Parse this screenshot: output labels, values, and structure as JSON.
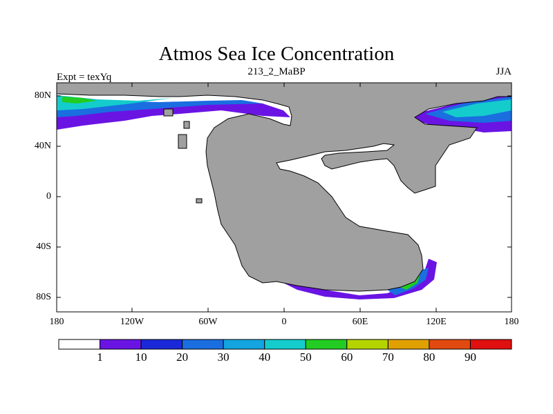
{
  "title": "Atmos Sea Ice Concentration",
  "subtitle": "213_2_MaBP",
  "left_label": "Expt = texYq",
  "right_label": "JJA",
  "map": {
    "lat_ticks": [
      "80N",
      "40N",
      "0",
      "40S",
      "80S"
    ],
    "lon_ticks": [
      "180",
      "120W",
      "60W",
      "0",
      "60E",
      "120E",
      "180"
    ],
    "land_color": "#a0a0a0"
  },
  "colorbar": {
    "labels": [
      "1",
      "10",
      "20",
      "30",
      "40",
      "50",
      "60",
      "70",
      "80",
      "90"
    ],
    "colors": [
      "#ffffff",
      "#6a14e4",
      "#1a28d8",
      "#1a6ee0",
      "#14a4e0",
      "#14cccc",
      "#22cc22",
      "#b4d400",
      "#e0a000",
      "#e04a10",
      "#e01010"
    ]
  }
}
